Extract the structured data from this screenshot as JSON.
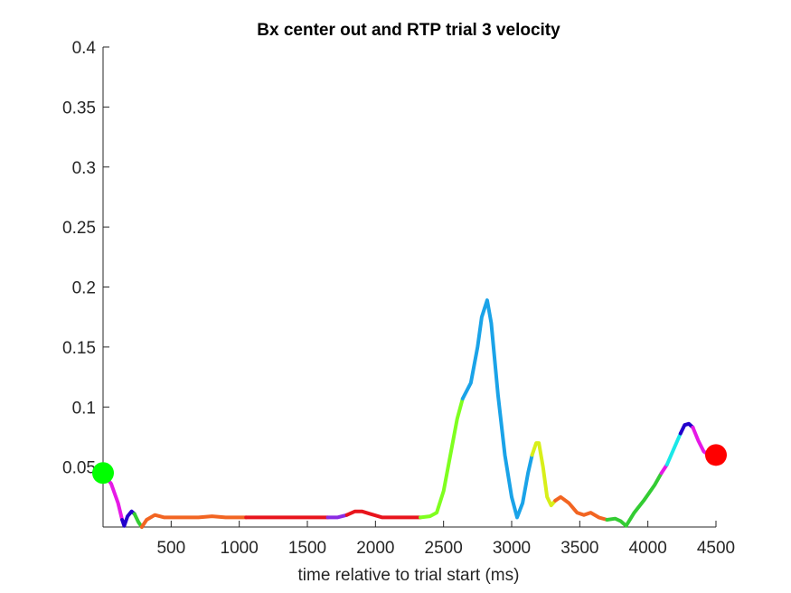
{
  "chart_data": {
    "type": "line",
    "title": "Bx  center out and RTP trial 3 velocity",
    "xlabel": "time relative to trial start (ms)",
    "ylabel": "",
    "xlim": [
      0,
      4500
    ],
    "ylim": [
      0,
      0.4
    ],
    "xticks": [
      500,
      1000,
      1500,
      2000,
      2500,
      3000,
      3500,
      4000,
      4500
    ],
    "xtick_labels": [
      "500",
      "1000",
      "1500",
      "2000",
      "2500",
      "3000",
      "3500",
      "4000",
      "4500"
    ],
    "yticks": [
      0.05,
      0.1,
      0.15,
      0.2,
      0.25,
      0.3,
      0.35,
      0.4
    ],
    "ytick_labels": [
      "0.05",
      "0.1",
      "0.15",
      "0.2",
      "0.25",
      "0.3",
      "0.35",
      "0.4"
    ],
    "grid": false,
    "series": [
      {
        "segments": [
          {
            "color": "#e619e6",
            "x": [
              0,
              60,
              110,
              140
            ],
            "y": [
              0.045,
              0.036,
              0.02,
              0.006
            ]
          },
          {
            "color": "#2200cc",
            "x": [
              140,
              155,
              180,
              210,
              230
            ],
            "y": [
              0.006,
              0.001,
              0.009,
              0.013,
              0.011
            ]
          },
          {
            "color": "#33cc33",
            "x": [
              230,
              260,
              285
            ],
            "y": [
              0.011,
              0.004,
              0.0
            ]
          },
          {
            "color": "#f26522",
            "x": [
              285,
              320,
              380,
              450,
              550,
              700,
              800,
              900,
              1050
            ],
            "y": [
              0.0,
              0.006,
              0.01,
              0.008,
              0.008,
              0.008,
              0.009,
              0.008,
              0.008
            ]
          },
          {
            "color": "#e8141c",
            "x": [
              1050,
              1300,
              1500,
              1650
            ],
            "y": [
              0.008,
              0.008,
              0.008,
              0.008
            ]
          },
          {
            "color": "#8a2be2",
            "x": [
              1650,
              1720,
              1790
            ],
            "y": [
              0.008,
              0.008,
              0.01
            ]
          },
          {
            "color": "#e8141c",
            "x": [
              1790,
              1850,
              1900,
              1960,
              2050,
              2200,
              2330
            ],
            "y": [
              0.01,
              0.013,
              0.013,
              0.011,
              0.008,
              0.008,
              0.008
            ]
          },
          {
            "color": "#7fff1f",
            "x": [
              2330,
              2400,
              2450,
              2500,
              2550,
              2600,
              2640
            ],
            "y": [
              0.008,
              0.009,
              0.012,
              0.03,
              0.06,
              0.09,
              0.107
            ]
          },
          {
            "color": "#1aa3e8",
            "x": [
              2640,
              2700,
              2750,
              2780,
              2820,
              2850,
              2900,
              2950,
              3000,
              3040,
              3080,
              3120,
              3150
            ],
            "y": [
              0.107,
              0.12,
              0.15,
              0.175,
              0.189,
              0.17,
              0.11,
              0.06,
              0.025,
              0.008,
              0.02,
              0.045,
              0.06
            ]
          },
          {
            "color": "#d8ef1a",
            "x": [
              3150,
              3180,
              3200,
              3230,
              3260,
              3290,
              3320
            ],
            "y": [
              0.06,
              0.07,
              0.07,
              0.05,
              0.025,
              0.018,
              0.022
            ]
          },
          {
            "color": "#f26522",
            "x": [
              3320,
              3360,
              3420,
              3480,
              3530,
              3580,
              3640,
              3700
            ],
            "y": [
              0.022,
              0.025,
              0.02,
              0.012,
              0.01,
              0.012,
              0.008,
              0.006
            ]
          },
          {
            "color": "#33cc33",
            "x": [
              3700,
              3760,
              3800,
              3840,
              3900,
              3970,
              4050,
              4100
            ],
            "y": [
              0.006,
              0.007,
              0.005,
              0.001,
              0.012,
              0.022,
              0.035,
              0.045
            ]
          },
          {
            "color": "#e619e6",
            "x": [
              4100,
              4140
            ],
            "y": [
              0.045,
              0.052
            ]
          },
          {
            "color": "#1ae8e8",
            "x": [
              4140,
              4190,
              4240
            ],
            "y": [
              0.052,
              0.065,
              0.078
            ]
          },
          {
            "color": "#2200cc",
            "x": [
              4240,
              4270,
              4300,
              4330
            ],
            "y": [
              0.078,
              0.085,
              0.086,
              0.083
            ]
          },
          {
            "color": "#e619e6",
            "x": [
              4330,
              4370,
              4410,
              4450,
              4500
            ],
            "y": [
              0.083,
              0.072,
              0.063,
              0.06,
              0.06
            ]
          }
        ]
      }
    ],
    "markers": [
      {
        "name": "start",
        "x": 0,
        "y": 0.045,
        "color": "#00ff00"
      },
      {
        "name": "end",
        "x": 4500,
        "y": 0.06,
        "color": "#ff0000"
      }
    ]
  }
}
